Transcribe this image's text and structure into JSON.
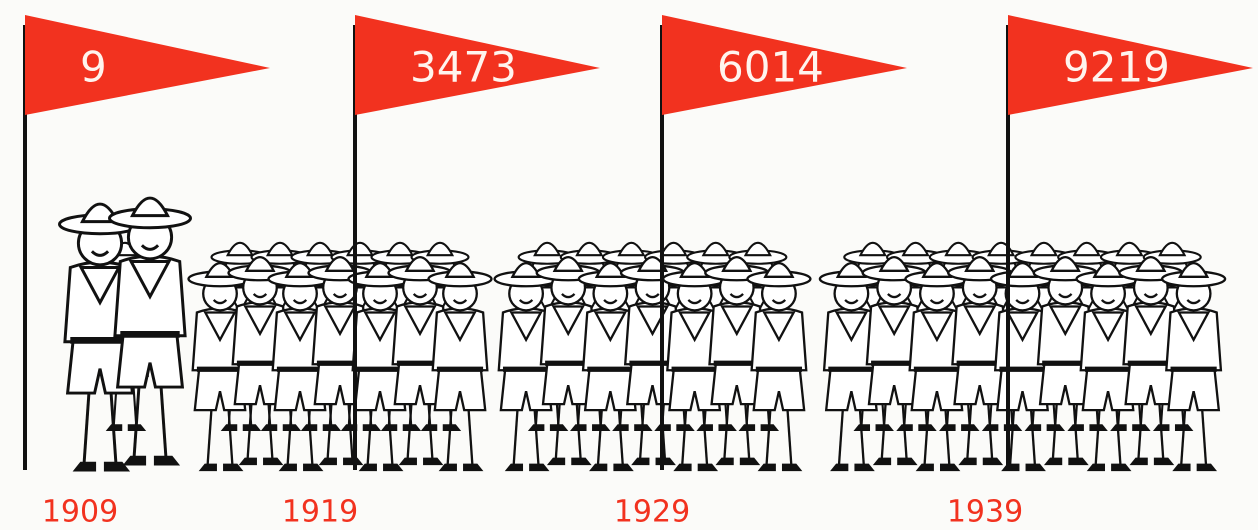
{
  "chart_data": {
    "type": "pictograph",
    "categories": [
      "1909",
      "1919",
      "1929",
      "1939"
    ],
    "values": [
      9,
      3473,
      6014,
      9219
    ],
    "color": "#f2321f"
  }
}
